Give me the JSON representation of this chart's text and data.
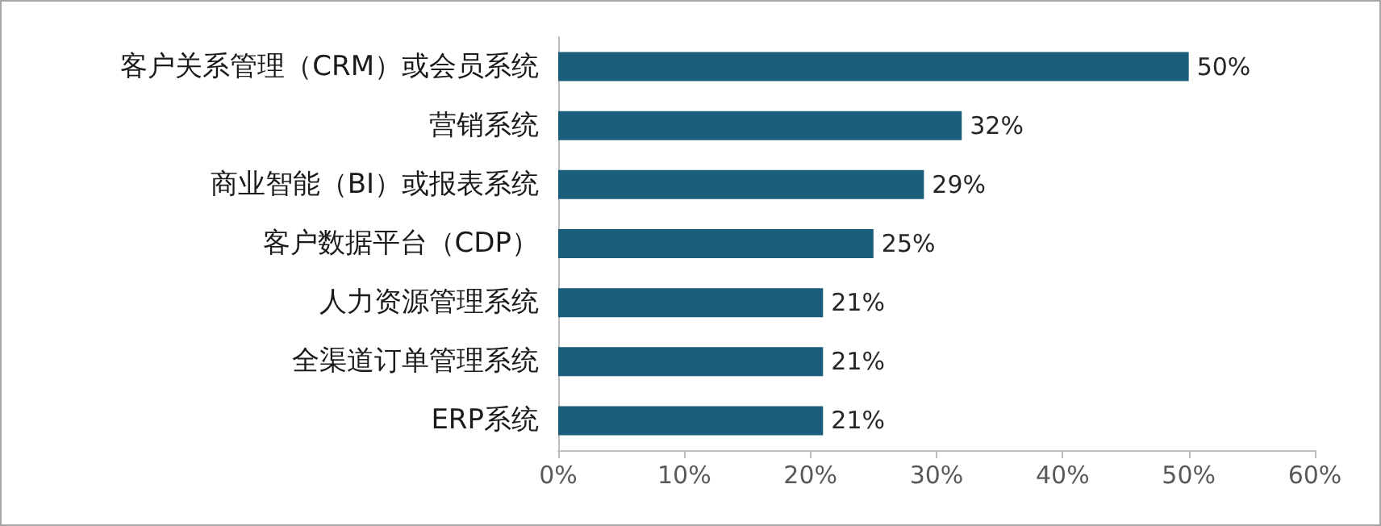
{
  "chart_data": {
    "type": "bar",
    "orientation": "horizontal",
    "categories": [
      "客户关系管理（CRM）或会员系统",
      "营销系统",
      "商业智能（BI）或报表系统",
      "客户数据平台（CDP）",
      "人力资源管理系统",
      "全渠道订单管理系统",
      "ERP系统"
    ],
    "values": [
      50,
      32,
      29,
      25,
      21,
      21,
      21
    ],
    "value_labels": [
      "50%",
      "32%",
      "29%",
      "25%",
      "21%",
      "21%",
      "21%"
    ],
    "color": "#1b5e7b",
    "xlim": [
      0,
      60
    ],
    "xticks": [
      {
        "value": 0,
        "label": "0%"
      },
      {
        "value": 10,
        "label": "10%"
      },
      {
        "value": 20,
        "label": "20%"
      },
      {
        "value": 30,
        "label": "30%"
      },
      {
        "value": 40,
        "label": "40%"
      },
      {
        "value": 50,
        "label": "50%"
      },
      {
        "value": 60,
        "label": "60%"
      }
    ],
    "grid": false
  }
}
